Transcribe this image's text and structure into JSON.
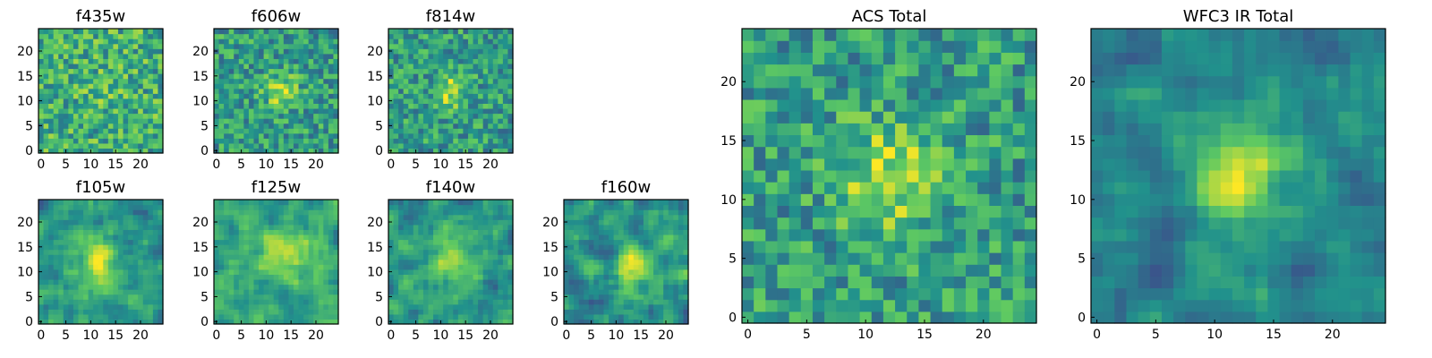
{
  "chart_data": {
    "type": "heatmap",
    "colormap": "viridis",
    "color_stops": [
      "#440154",
      "#3b528b",
      "#21918c",
      "#5ec962",
      "#fde725"
    ],
    "grid_size": 25,
    "panels": [
      {
        "title": "f435w",
        "xticks": [
          "0",
          "5",
          "10",
          "15",
          "20"
        ],
        "yticks": [
          "0",
          "5",
          "10",
          "15",
          "20"
        ],
        "xlim": [
          0,
          24
        ],
        "ylim": [
          0,
          24
        ],
        "signal": {
          "center": [
            12,
            12
          ],
          "amplitude": 0.05,
          "sigma": 3
        },
        "noise": 0.5,
        "smooth": 0,
        "base": 0.62,
        "seed": 3
      },
      {
        "title": "f606w",
        "xticks": [
          "0",
          "5",
          "10",
          "15",
          "20"
        ],
        "yticks": [
          "0",
          "5",
          "10",
          "15",
          "20"
        ],
        "xlim": [
          0,
          24
        ],
        "ylim": [
          0,
          24
        ],
        "signal": {
          "center": [
            13,
            12
          ],
          "amplitude": 0.35,
          "sigma": 2.2
        },
        "noise": 0.45,
        "smooth": 0,
        "base": 0.55,
        "seed": 7
      },
      {
        "title": "f814w",
        "xticks": [
          "0",
          "5",
          "10",
          "15",
          "20"
        ],
        "yticks": [
          "0",
          "5",
          "10",
          "15",
          "20"
        ],
        "xlim": [
          0,
          24
        ],
        "ylim": [
          0,
          24
        ],
        "signal": {
          "center": [
            12,
            12
          ],
          "amplitude": 0.35,
          "sigma": 2.2
        },
        "noise": 0.45,
        "smooth": 0,
        "base": 0.55,
        "seed": 11
      },
      {
        "title": "f105w",
        "xticks": [
          "0",
          "5",
          "10",
          "15",
          "20"
        ],
        "yticks": [
          "0",
          "5",
          "10",
          "15",
          "20"
        ],
        "xlim": [
          0,
          24
        ],
        "ylim": [
          0,
          24
        ],
        "signal": {
          "center": [
            12,
            12
          ],
          "amplitude": 0.4,
          "sigma": 3
        },
        "noise": 0.5,
        "smooth": 1,
        "base": 0.55,
        "seed": 19
      },
      {
        "title": "f125w",
        "xticks": [
          "0",
          "5",
          "10",
          "15",
          "20"
        ],
        "yticks": [
          "0",
          "5",
          "10",
          "15",
          "20"
        ],
        "xlim": [
          0,
          24
        ],
        "ylim": [
          0,
          24
        ],
        "signal": {
          "center": [
            14,
            14
          ],
          "amplitude": 0.35,
          "sigma": 3
        },
        "noise": 0.45,
        "smooth": 1,
        "base": 0.6,
        "seed": 23
      },
      {
        "title": "f140w",
        "xticks": [
          "0",
          "5",
          "10",
          "15",
          "20"
        ],
        "yticks": [
          "0",
          "5",
          "10",
          "15",
          "20"
        ],
        "xlim": [
          0,
          24
        ],
        "ylim": [
          0,
          24
        ],
        "signal": {
          "center": [
            12,
            12
          ],
          "amplitude": 0.35,
          "sigma": 3
        },
        "noise": 0.5,
        "smooth": 1,
        "base": 0.55,
        "seed": 29
      },
      {
        "title": "f160w",
        "xticks": [
          "0",
          "5",
          "10",
          "15",
          "20"
        ],
        "yticks": [
          "0",
          "5",
          "10",
          "15",
          "20"
        ],
        "xlim": [
          0,
          24
        ],
        "ylim": [
          0,
          24
        ],
        "signal": {
          "center": [
            13,
            12
          ],
          "amplitude": 0.45,
          "sigma": 2.5
        },
        "noise": 0.55,
        "smooth": 1,
        "base": 0.5,
        "seed": 31
      },
      {
        "title": "ACS Total",
        "xticks": [
          "0",
          "5",
          "10",
          "15",
          "20"
        ],
        "yticks": [
          "0",
          "5",
          "10",
          "15",
          "20"
        ],
        "xlim": [
          0,
          24
        ],
        "ylim": [
          0,
          24
        ],
        "signal": {
          "center": [
            12,
            12
          ],
          "amplitude": 0.35,
          "sigma": 3
        },
        "noise": 0.45,
        "smooth": 0,
        "base": 0.55,
        "seed": 37
      },
      {
        "title": "WFC3 IR Total",
        "xticks": [
          "0",
          "5",
          "10",
          "15",
          "20"
        ],
        "yticks": [
          "0",
          "5",
          "10",
          "15",
          "20"
        ],
        "xlim": [
          0,
          24
        ],
        "ylim": [
          0,
          24
        ],
        "signal": {
          "center": [
            12,
            12
          ],
          "amplitude": 0.5,
          "sigma": 3
        },
        "noise": 0.4,
        "smooth": 1,
        "base": 0.45,
        "seed": 41
      }
    ]
  }
}
